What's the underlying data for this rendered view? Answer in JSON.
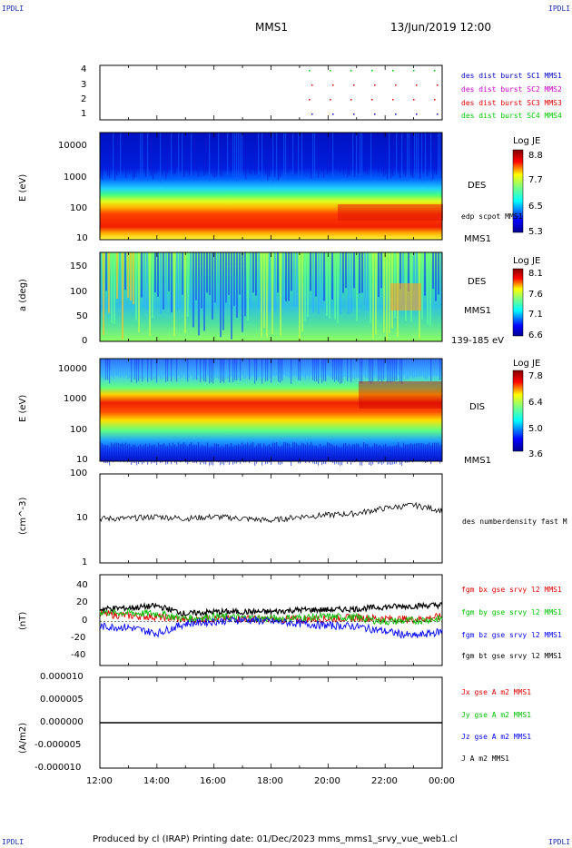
{
  "corners": {
    "tl": "IPDLI",
    "tr": "IPDLI",
    "bl": "IPDLI",
    "br": "IPDLI"
  },
  "header": {
    "spacecraft": "MMS1",
    "date": "13/Jun/2019 12:00"
  },
  "footer": "Produced by cl (IRAP)   Printing date: 01/Dec/2023   mms_mms1_srvy_vue_web1.cl",
  "colors": {
    "c1": "#0000c8",
    "c2": "#c800c8",
    "c3": "#e00000",
    "c4": "#00c800",
    "bz": "#0000ff",
    "by": "#00c000",
    "bx": "#e00000",
    "bt": "#000000"
  },
  "chart_data": [
    {
      "type": "scatter",
      "panel": "burst",
      "yticks": [
        "4",
        "3",
        "2",
        "1"
      ],
      "legend": [
        "des dist burst SC1 MMS1",
        "des dist burst SC2 MMS2",
        "des dist burst SC3 MMS3",
        "des dist burst SC4 MMS4"
      ]
    },
    {
      "type": "heatmap",
      "panel": "des-energy",
      "ylabel": "E (eV)",
      "yticks": [
        "10000",
        "1000",
        "100",
        "10"
      ],
      "side": "DES",
      "bottom_label": "MMS1",
      "inner_label": "edp scpot MMS1",
      "colorbar": {
        "title": "Log JE",
        "ticks": [
          "8.8",
          "7.7",
          "6.5",
          "5.3"
        ]
      }
    },
    {
      "type": "heatmap",
      "panel": "des-pitch",
      "ylabel": "a (deg)",
      "yticks": [
        "150",
        "100",
        "50",
        "0"
      ],
      "side": "DES",
      "side2": "MMS1",
      "bottom_label": "139-185 eV",
      "colorbar": {
        "title": "Log JE",
        "ticks": [
          "8.1",
          "7.6",
          "7.1",
          "6.6"
        ]
      }
    },
    {
      "type": "heatmap",
      "panel": "dis-energy",
      "ylabel": "E (eV)",
      "yticks": [
        "10000",
        "1000",
        "100",
        "10"
      ],
      "side": "DIS",
      "bottom_label": "MMS1",
      "colorbar": {
        "title": "Log JE",
        "ticks": [
          "7.8",
          "6.4",
          "5.0",
          "3.6"
        ]
      }
    },
    {
      "type": "line",
      "panel": "density",
      "ylabel": "(cm^-3)",
      "log": true,
      "yticks": [
        "100",
        "10",
        "1"
      ],
      "legend": [
        "des numberdensity fast M"
      ],
      "x": [
        "12:00",
        "13:00",
        "14:00",
        "15:00",
        "16:00",
        "17:00",
        "18:00",
        "19:00",
        "20:00",
        "21:00",
        "22:00",
        "23:00",
        "00:00"
      ],
      "values": [
        10,
        10,
        11,
        10,
        11,
        10,
        9,
        11,
        12,
        13,
        17,
        20,
        15
      ]
    },
    {
      "type": "line",
      "panel": "fgm",
      "ylabel": "(nT)",
      "yticks": [
        "40",
        "20",
        "0",
        "-20",
        "-40"
      ],
      "ylim": [
        -45,
        48
      ],
      "legend": [
        "fgm bx gse srvy l2 MMS1",
        "fgm by gse srvy l2 MMS1",
        "fgm bz gse srvy l2 MMS1",
        "fgm bt gse srvy l2 MMS1"
      ],
      "x": [
        "12:00",
        "13:00",
        "14:00",
        "15:00",
        "16:00",
        "17:00",
        "18:00",
        "19:00",
        "20:00",
        "21:00",
        "22:00",
        "23:00",
        "00:00"
      ],
      "series": [
        {
          "name": "fgm bx gse srvy l2 MMS1",
          "values": [
            8,
            6,
            5,
            2,
            3,
            3,
            2,
            2,
            3,
            4,
            3,
            2,
            5
          ]
        },
        {
          "name": "fgm by gse srvy l2 MMS1",
          "values": [
            10,
            9,
            8,
            3,
            5,
            4,
            3,
            4,
            5,
            4,
            0,
            1,
            3
          ]
        },
        {
          "name": "fgm bz gse srvy l2 MMS1",
          "values": [
            -5,
            -6,
            -12,
            -2,
            0,
            2,
            0,
            -2,
            -4,
            -5,
            -10,
            -15,
            -10
          ]
        },
        {
          "name": "fgm bt gse srvy l2 MMS1",
          "values": [
            13,
            14,
            16,
            8,
            10,
            10,
            10,
            12,
            12,
            13,
            15,
            16,
            17
          ]
        }
      ]
    },
    {
      "type": "line",
      "panel": "current",
      "ylabel": "(A/m2)",
      "yticks": [
        "0.000010",
        "0.000005",
        "0.000000",
        "-0.000005",
        "-0.000010"
      ],
      "ylim": [
        -1e-05,
        1e-05
      ],
      "legend": [
        "Jx gse A m2 MMS1",
        "Jy gse A m2 MMS1",
        "Jz gse A m2 MMS1",
        "J A m2 MMS1"
      ],
      "xticks": [
        "12:00",
        "14:00",
        "16:00",
        "18:00",
        "20:00",
        "22:00",
        "00:00"
      ],
      "values": [
        0,
        0,
        0,
        0,
        0,
        0,
        0
      ]
    }
  ]
}
